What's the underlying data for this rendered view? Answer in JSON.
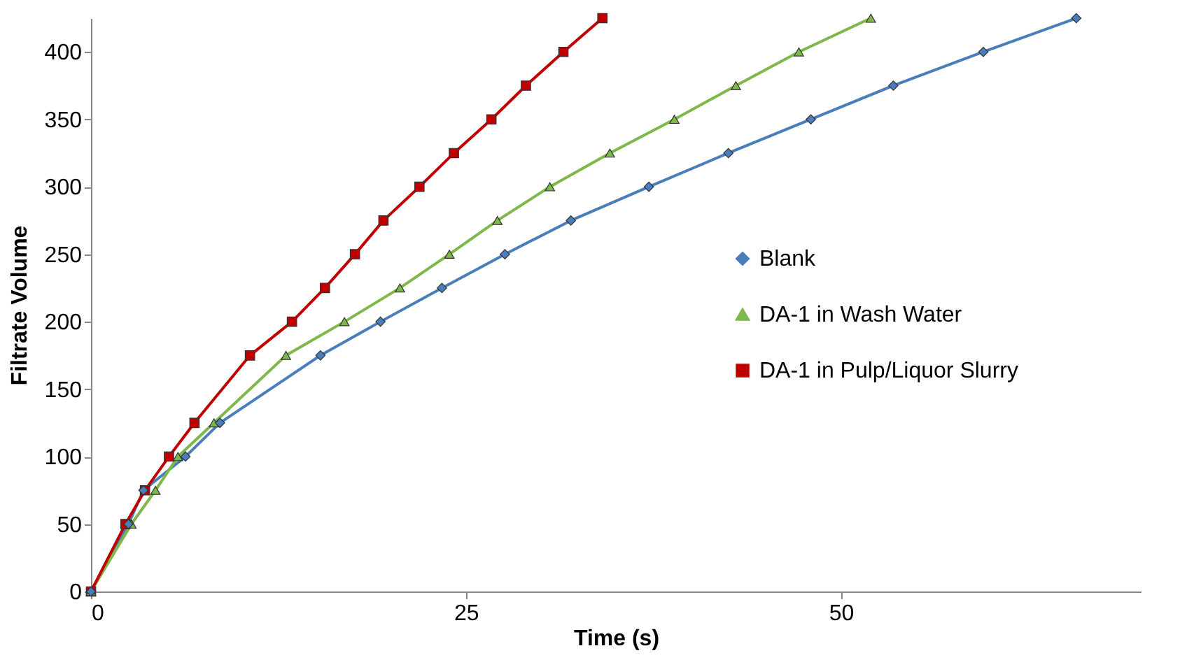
{
  "chart_data": {
    "type": "line",
    "xlabel": "Time (s)",
    "ylabel": "Filtrate Volume",
    "xlim": [
      0,
      70
    ],
    "xticks": [
      0,
      25,
      50
    ],
    "ylim": [
      0,
      425
    ],
    "yticks": [
      0,
      50,
      100,
      150,
      200,
      250,
      300,
      350,
      400
    ],
    "grid": false,
    "legend": "right",
    "series": [
      {
        "name": "Blank",
        "color": "#4a7ebb",
        "marker": "diamond",
        "x": [
          0,
          2.5,
          3.5,
          6.3,
          8.6,
          15.3,
          19.3,
          23.4,
          27.6,
          32.0,
          37.2,
          42.5,
          48.0,
          53.5,
          59.5,
          65.7
        ],
        "values": [
          0,
          50,
          75,
          100,
          125,
          175,
          200,
          225,
          250,
          275,
          300,
          325,
          350,
          375,
          400,
          425
        ]
      },
      {
        "name": "DA-1 in Wash Water",
        "color": "#7eb84a",
        "marker": "triangle",
        "x": [
          0,
          2.7,
          4.3,
          5.8,
          8.2,
          13.0,
          16.9,
          20.6,
          23.9,
          27.1,
          30.6,
          34.6,
          38.9,
          43.0,
          47.2,
          52.0
        ],
        "values": [
          0,
          50,
          75,
          100,
          125,
          175,
          200,
          225,
          250,
          275,
          300,
          325,
          350,
          375,
          400,
          425
        ]
      },
      {
        "name": "DA-1 in Pulp/Liquor Slurry",
        "color": "#c00000",
        "marker": "square",
        "x": [
          0,
          2.3,
          3.6,
          5.2,
          6.9,
          10.6,
          13.4,
          15.6,
          17.6,
          19.5,
          21.9,
          24.2,
          26.7,
          29.0,
          31.5,
          34.1
        ],
        "values": [
          0,
          50,
          75,
          100,
          125,
          175,
          200,
          225,
          250,
          275,
          300,
          325,
          350,
          375,
          400,
          425
        ]
      }
    ]
  }
}
